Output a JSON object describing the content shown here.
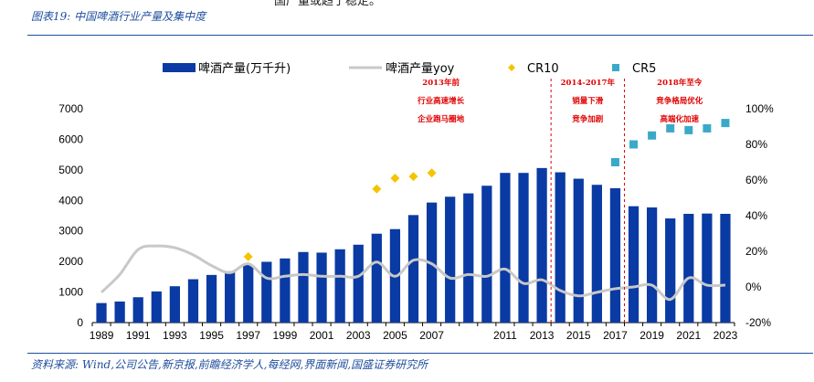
{
  "header": {
    "top_text": "国产量或趋于稳定。",
    "figure_title": "图表19:  中国啤酒行业产量及集中度"
  },
  "footer": {
    "source": "资料来源:  Wind,公司公告,新京报,前瞻经济学人,每经网,界面新闻,国盛证券研究所"
  },
  "colors": {
    "bar": "#0a3aa3",
    "yoy_line": "#c8c8c8",
    "cr10": "#f5c400",
    "cr5": "#3aa9c9",
    "divider": "#e00000",
    "annotation": "#e00000",
    "title": "#1f4e9e"
  },
  "chart_data": {
    "type": "bar",
    "x_tick_labels": [
      "1989",
      "1991",
      "1993",
      "1995",
      "1997",
      "1999",
      "2001",
      "2003",
      "2005",
      "2007",
      "2011",
      "2013",
      "2015",
      "2017",
      "2019",
      "2021",
      "2023"
    ],
    "x": [
      1989,
      1990,
      1991,
      1992,
      1993,
      1994,
      1995,
      1996,
      1997,
      1998,
      1999,
      2000,
      2001,
      2002,
      2003,
      2004,
      2005,
      2006,
      2007,
      2008,
      2009,
      2010,
      2011,
      2012,
      2013,
      2014,
      2015,
      2016,
      2017,
      2018,
      2019,
      2020,
      2021,
      2022,
      2023
    ],
    "y_left": {
      "ticks": [
        "0",
        "1000",
        "2000",
        "3000",
        "4000",
        "5000",
        "6000",
        "7000"
      ],
      "lim": [
        0,
        7000
      ]
    },
    "y_right": {
      "ticks": [
        "-20%",
        "0%",
        "20%",
        "40%",
        "60%",
        "80%",
        "100%"
      ],
      "lim": [
        -20,
        100
      ]
    },
    "series": [
      {
        "name": "啤酒产量(万千升)",
        "kind": "bar",
        "axis": "left",
        "values": [
          640,
          690,
          830,
          1020,
          1190,
          1420,
          1560,
          1680,
          1890,
          1990,
          2100,
          2310,
          2290,
          2400,
          2550,
          2910,
          3060,
          3520,
          3930,
          4120,
          4230,
          4480,
          4900,
          4900,
          5060,
          4920,
          4710,
          4510,
          4400,
          3810,
          3770,
          3410,
          3560,
          3570,
          3560
        ]
      },
      {
        "name": "啤酒产量yoy",
        "kind": "line",
        "axis": "right",
        "values": [
          -3,
          7,
          21,
          23,
          22,
          18,
          12,
          8,
          13,
          5,
          6,
          7,
          6,
          6,
          6,
          14,
          6,
          15,
          13,
          5,
          7,
          6,
          10,
          2,
          4,
          -2,
          -5,
          -3,
          -1,
          0,
          1,
          -7,
          5,
          1,
          1
        ]
      },
      {
        "name": "CR10",
        "kind": "scatter",
        "axis": "right",
        "x": [
          1997,
          2004,
          2005,
          2006,
          2007
        ],
        "values": [
          17,
          55,
          61,
          62,
          64
        ]
      },
      {
        "name": "CR5",
        "kind": "scatter",
        "axis": "right",
        "x": [
          2017,
          2018,
          2019,
          2020,
          2021,
          2022,
          2023
        ],
        "values": [
          70,
          80,
          85,
          89,
          88,
          89,
          92
        ]
      }
    ],
    "dividers": [
      2013.5,
      2017.5
    ],
    "annotations": [
      {
        "lines": [
          "2013年前",
          "行业高速增长",
          "企业跑马圈地"
        ],
        "x": 2007.5
      },
      {
        "lines": [
          "2014-2017年",
          "销量下滑",
          "竞争加剧"
        ],
        "x": 2015.5
      },
      {
        "lines": [
          "2018年至今",
          "竞争格局优化",
          "高端化加速"
        ],
        "x": 2020.5
      }
    ],
    "legend_position": "top"
  }
}
